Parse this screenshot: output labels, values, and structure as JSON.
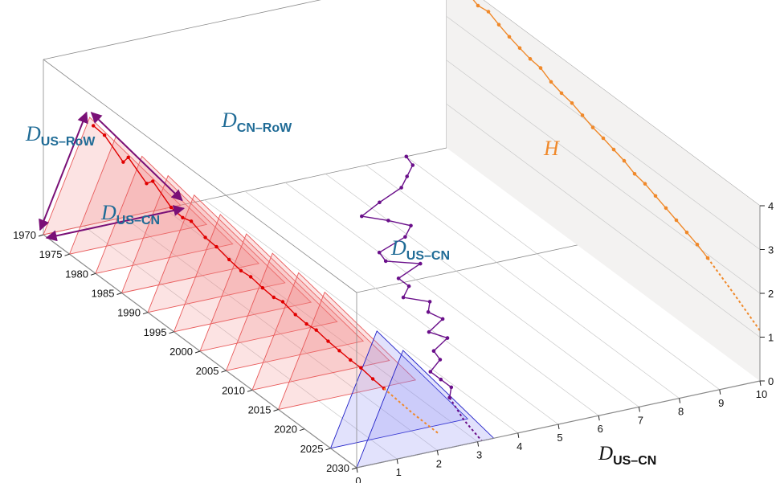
{
  "chart_data": {
    "type": "line",
    "title": "",
    "colors": {
      "triangle_hist_fill": "#f08080",
      "triangle_hist_edge": "#e85a5a",
      "triangle_proj_fill": "#8c8cf5",
      "triangle_proj_edge": "#2020c8",
      "trajectory": "#e00000",
      "distance_series": "#6a0f8a",
      "h_series": "#f0892a",
      "arrows": "#7a1077",
      "back_panel": "#f3f2f1"
    },
    "labels": {
      "d_us_row_main": "D",
      "d_us_row_sub": "US–RoW",
      "d_cn_row_main": "D",
      "d_cn_row_sub": "CN–RoW",
      "d_us_cn_triangle_main": "D",
      "d_us_cn_triangle_sub": "US–CN",
      "d_us_cn_curve_main": "D",
      "d_us_cn_curve_sub": "US–CN",
      "h_label": "H",
      "x_axis_main": "D",
      "x_axis_sub": "US–CN"
    },
    "year_axis": {
      "ticks": [
        "1970",
        "1975",
        "1980",
        "1985",
        "1990",
        "1995",
        "2000",
        "2005",
        "2010",
        "2015",
        "2020",
        "2025",
        "2030"
      ],
      "range": [
        1970,
        2030
      ]
    },
    "x_axis": {
      "ticks": [
        "0",
        "1",
        "2",
        "3",
        "4",
        "5",
        "6",
        "7",
        "8",
        "9",
        "10"
      ],
      "range": [
        0,
        10
      ]
    },
    "z_axis": {
      "ticks": [
        "0",
        "1",
        "2",
        "3",
        "4"
      ],
      "range": [
        0,
        4
      ]
    },
    "triangle_years_historical": [
      1970,
      1975,
      1980,
      1985,
      1990,
      1995,
      2000,
      2005,
      2010,
      2015
    ],
    "triangle_years_projected": [
      2025,
      2030
    ],
    "series": [
      {
        "name": "D US–CN",
        "axis": "x",
        "years": [
          1970,
          1972,
          1974,
          1976,
          1978,
          1980,
          1982,
          1984,
          1986,
          1988,
          1990,
          1992,
          1994,
          1996,
          1998,
          2000,
          2002,
          2004,
          2006,
          2008,
          2010,
          2012,
          2014,
          2016,
          2018,
          2020
        ],
        "values": [
          9.0,
          8.9,
          8.5,
          8.1,
          7.3,
          6.6,
          7.0,
          7.3,
          6.9,
          6.0,
          5.9,
          6.5,
          5.7,
          5.7,
          5.3,
          5.7,
          5.4,
          5.5,
          4.9,
          5.1,
          4.5,
          4.4,
          3.9,
          3.9,
          3.9,
          3.6
        ],
        "projected": {
          "years": [
            2020,
            2025,
            2030
          ],
          "values": [
            3.6,
            3.3,
            3.1
          ]
        }
      },
      {
        "name": "H",
        "axis": "z",
        "years": [
          1970,
          1972,
          1974,
          1976,
          1978,
          1980,
          1982,
          1984,
          1986,
          1988,
          1990,
          1992,
          1994,
          1996,
          1998,
          2000,
          2002,
          2004,
          2006,
          2008,
          2010,
          2012,
          2014,
          2016,
          2018,
          2020
        ],
        "values": [
          3.95,
          3.97,
          3.9,
          3.78,
          3.82,
          3.7,
          3.6,
          3.52,
          3.45,
          3.42,
          3.28,
          3.2,
          3.15,
          3.05,
          2.95,
          2.88,
          2.8,
          2.72,
          2.6,
          2.55,
          2.45,
          2.35,
          2.25,
          2.15,
          2.05,
          1.92
        ],
        "projected": {
          "years": [
            2020,
            2025,
            2030
          ],
          "values": [
            1.92,
            1.55,
            1.15
          ]
        }
      },
      {
        "name": "trajectory",
        "axis": "triangle",
        "years": [
          1970,
          1972,
          1974,
          1976,
          1978,
          1980,
          1982,
          1984,
          1986,
          1988,
          1990,
          1992,
          1994,
          1996,
          1998,
          2000,
          2002,
          2004,
          2006,
          2008,
          2010,
          2012,
          2014,
          2016,
          2018,
          2020
        ],
        "offsets": [
          0.1,
          0.12,
          0.35,
          0.2,
          0.42,
          0.3,
          0.52,
          0.55,
          0.5,
          0.6,
          0.62,
          0.68,
          0.72,
          0.7,
          0.74,
          0.76,
          0.72,
          0.78,
          0.8,
          0.78,
          0.82,
          0.84,
          0.86,
          0.86,
          0.9,
          0.92
        ],
        "projected": {
          "years": [
            2020,
            2025,
            2030
          ],
          "offsets": [
            0.92,
            0.98,
            1.0
          ]
        }
      }
    ]
  }
}
